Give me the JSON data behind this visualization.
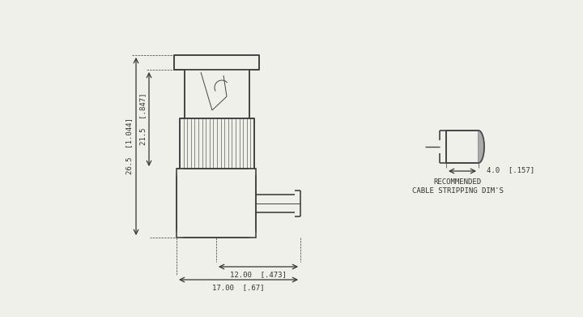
{
  "bg_color": "#f0f0eb",
  "line_color": "#444444",
  "dim_color": "#333333",
  "lw": 1.2,
  "thin_lw": 0.7,
  "annotations": {
    "dim_26_5": "26.5  [1.044]",
    "dim_21_5": "21.5  [.847]",
    "dim_12": "12.00  [.473]",
    "dim_17": "17.00  [.67]",
    "dim_4": "4.0  [.157]",
    "rec_label1": "RECOMMENDED",
    "rec_label2": "CABLE STRIPPING DIM'S"
  }
}
